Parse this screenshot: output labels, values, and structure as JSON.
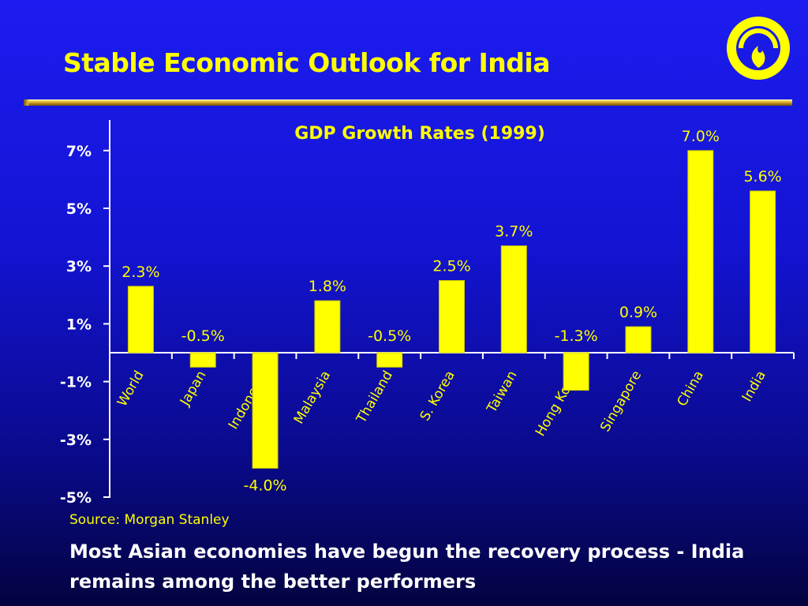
{
  "slide": {
    "title": "Stable Economic Outlook for India",
    "source": "Source: Morgan Stanley",
    "caption": "Most Asian economies have begun the recovery process - India remains among the better performers"
  },
  "logo": {
    "icon": "reliance-logo-icon",
    "colors": {
      "ring": "#ffff00",
      "flame": "#ffff00",
      "background": "#1a1ae6"
    }
  },
  "colors": {
    "background_top": "#1c1cf0",
    "background_bottom": "#030340",
    "title": "#ffff00",
    "bar": "#ffff00",
    "axis": "#ffffff",
    "caption": "#ffffff"
  },
  "chart_data": {
    "type": "bar",
    "title": "GDP Growth Rates (1999)",
    "categories": [
      "World",
      "Japan",
      "Indonesia",
      "Malaysia",
      "Thailand",
      "S. Korea",
      "Taiwan",
      "Hong Kong",
      "Singapore",
      "China",
      "India"
    ],
    "values": [
      2.3,
      -0.5,
      -4.0,
      1.8,
      -0.5,
      2.5,
      3.7,
      -1.3,
      0.9,
      7.0,
      5.6
    ],
    "data_labels": [
      "2.3%",
      "-0.5%",
      "-4.0%",
      "1.8%",
      "-0.5%",
      "2.5%",
      "3.7%",
      "-1.3%",
      "0.9%",
      "7.0%",
      "5.6%"
    ],
    "y_ticks": [
      7,
      5,
      3,
      1,
      -1,
      -3,
      -5
    ],
    "y_tick_labels": [
      "7%",
      "5%",
      "3%",
      "1%",
      "-1%",
      "-3%",
      "-5%"
    ],
    "ylim": [
      -5,
      8
    ],
    "grid": false,
    "legend": "none",
    "xlabel": "",
    "ylabel": ""
  }
}
